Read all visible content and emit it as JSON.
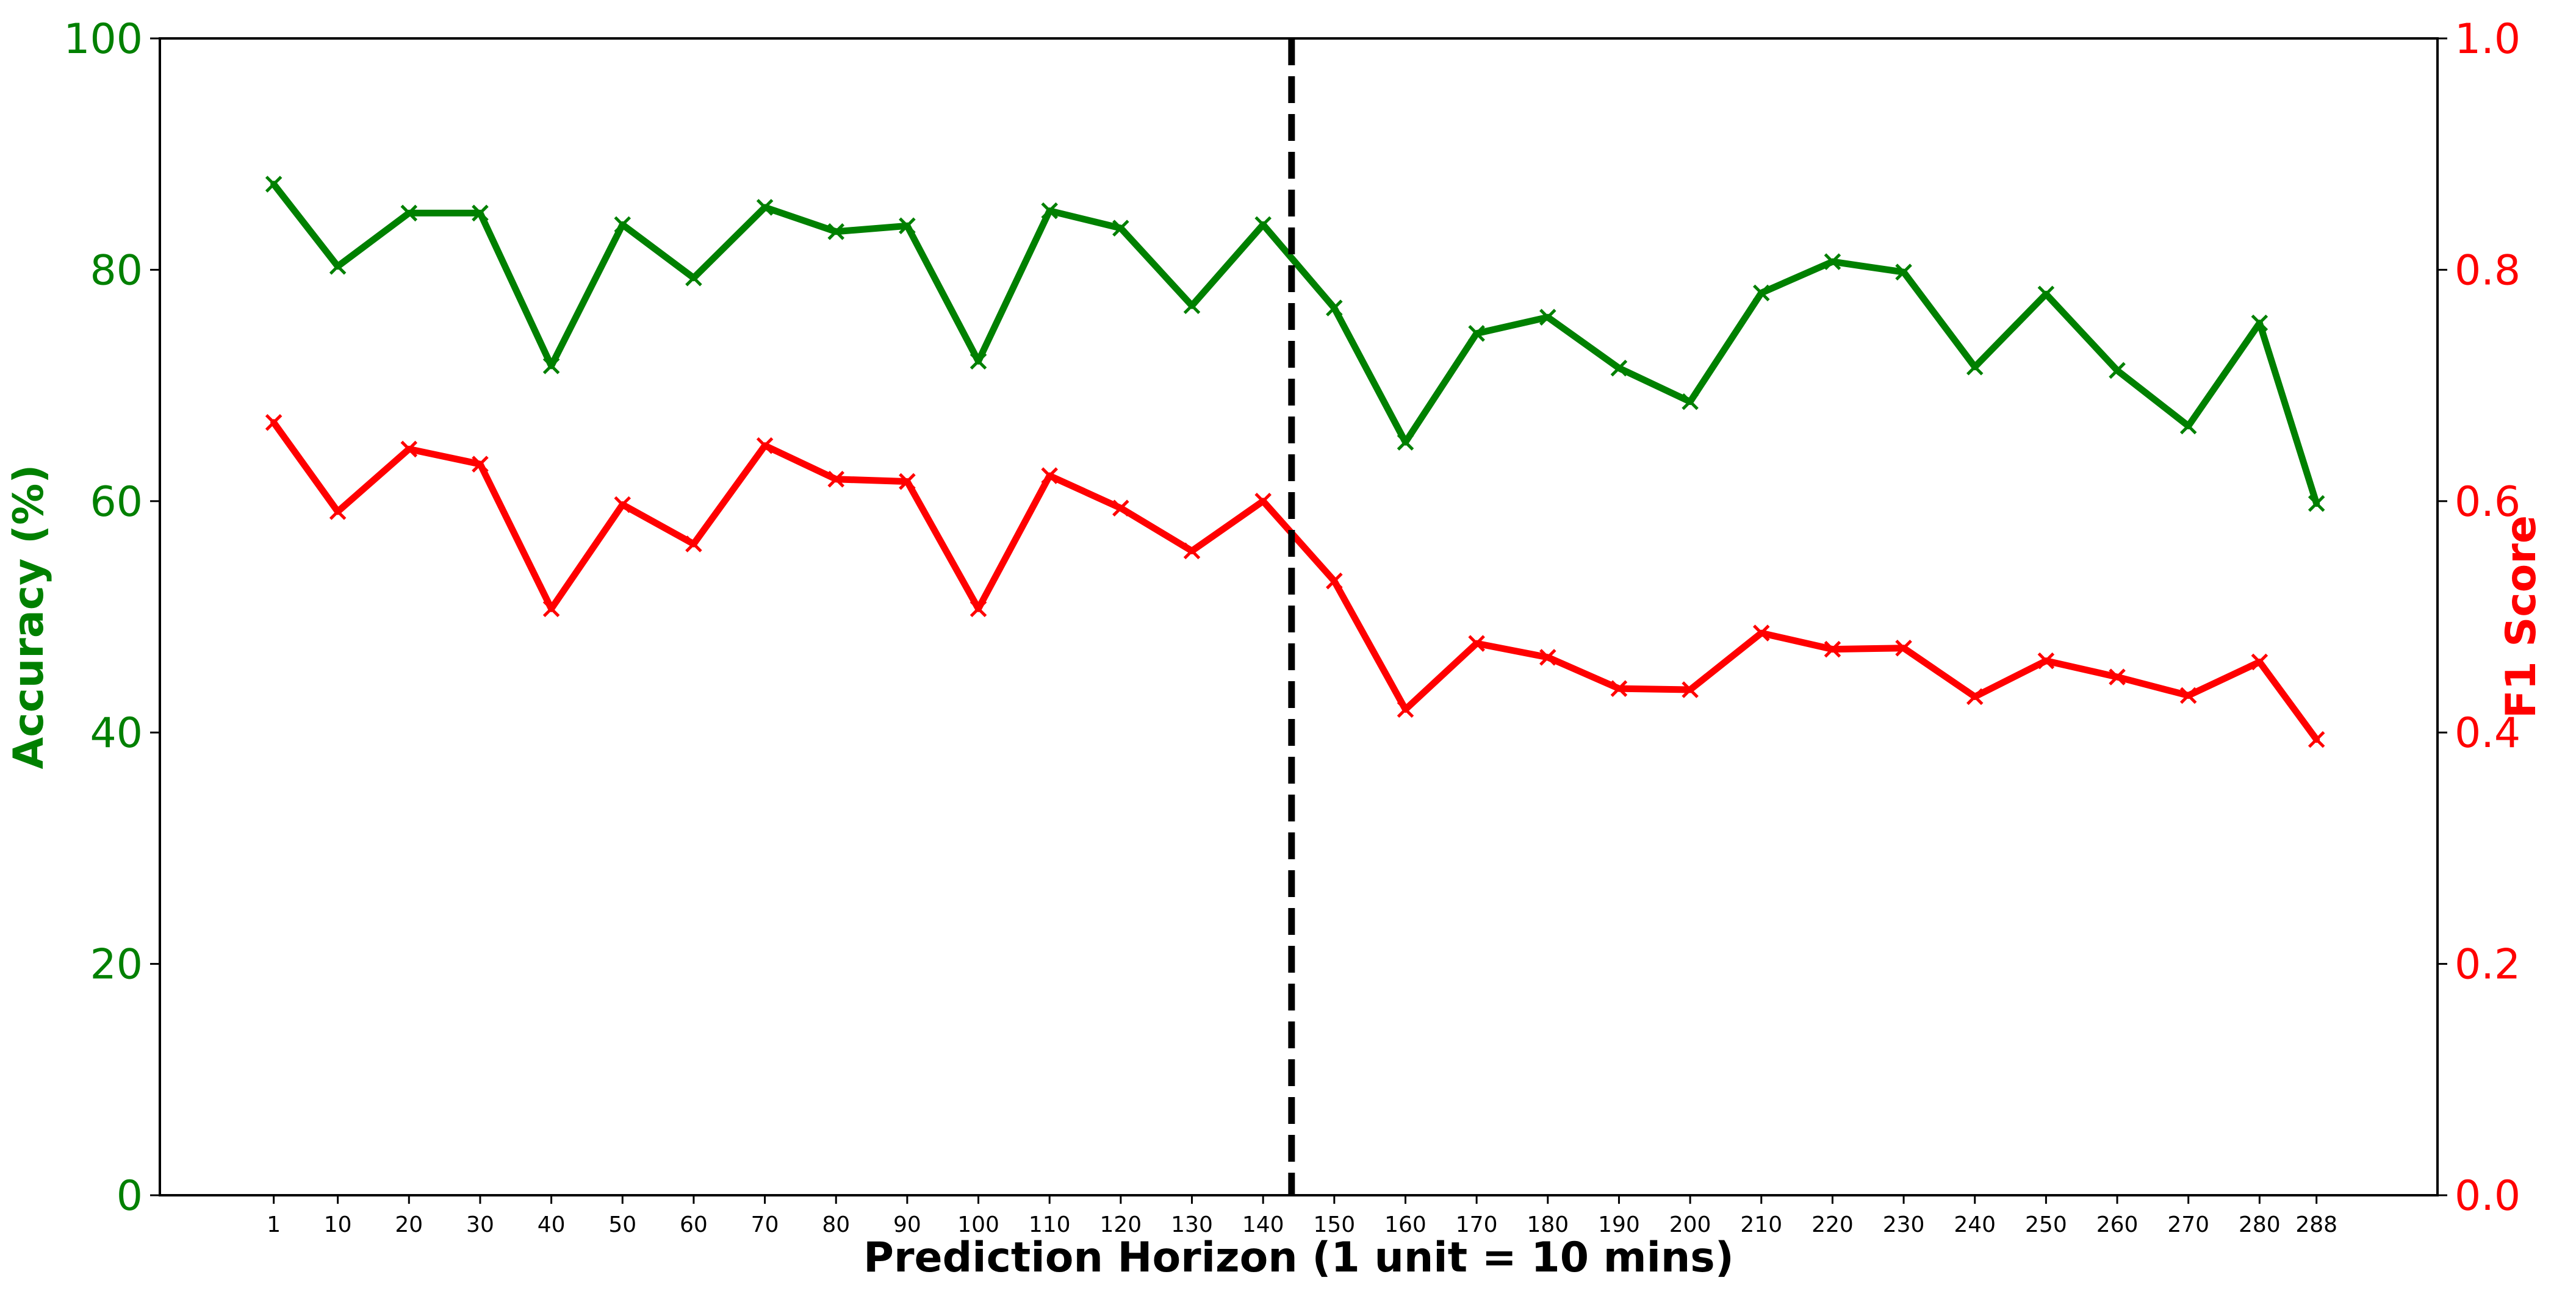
{
  "chart_data": {
    "type": "line",
    "xlabel": "Prediction Horizon (1 unit = 10 mins)",
    "x": [
      1,
      10,
      20,
      30,
      40,
      50,
      60,
      70,
      80,
      90,
      100,
      110,
      120,
      130,
      140,
      150,
      160,
      170,
      180,
      190,
      200,
      210,
      220,
      230,
      240,
      250,
      260,
      270,
      280,
      288
    ],
    "xticks": [
      "1",
      "10",
      "20",
      "30",
      "40",
      "50",
      "60",
      "70",
      "80",
      "90",
      "100",
      "110",
      "120",
      "130",
      "140",
      "150",
      "160",
      "170",
      "180",
      "190",
      "200",
      "210",
      "220",
      "230",
      "240",
      "250",
      "260",
      "270",
      "280",
      "288"
    ],
    "left_axis": {
      "label": "Accuracy (%)",
      "ylim": [
        0,
        100
      ],
      "ticks": [
        "0",
        "20",
        "40",
        "60",
        "80",
        "100"
      ],
      "color": "#008000"
    },
    "right_axis": {
      "label": "F1 Score",
      "ylim": [
        0.0,
        1.0
      ],
      "ticks": [
        "0.0",
        "0.2",
        "0.4",
        "0.6",
        "0.8",
        "1.0"
      ],
      "color": "#ff0000"
    },
    "series": [
      {
        "axis": "left",
        "color": "#008000",
        "marker": "x",
        "values": [
          87.4,
          80.3,
          84.9,
          84.9,
          71.7,
          83.9,
          79.3,
          85.4,
          83.3,
          83.8,
          72.1,
          85.1,
          83.6,
          76.9,
          83.9,
          76.7,
          65.1,
          74.5,
          75.9,
          71.5,
          68.6,
          78.0,
          80.7,
          79.8,
          71.6,
          77.9,
          71.3,
          66.5,
          75.4,
          59.8
        ]
      },
      {
        "axis": "right",
        "color": "#ff0000",
        "marker": "x",
        "values": [
          0.668,
          0.591,
          0.645,
          0.632,
          0.507,
          0.597,
          0.563,
          0.648,
          0.619,
          0.617,
          0.507,
          0.622,
          0.594,
          0.557,
          0.6,
          0.531,
          0.42,
          0.477,
          0.465,
          0.438,
          0.437,
          0.486,
          0.472,
          0.473,
          0.431,
          0.462,
          0.448,
          0.432,
          0.461,
          0.394
        ]
      }
    ],
    "vline": {
      "x": 144,
      "style": "dashed",
      "color": "#000000"
    },
    "grid": false
  }
}
